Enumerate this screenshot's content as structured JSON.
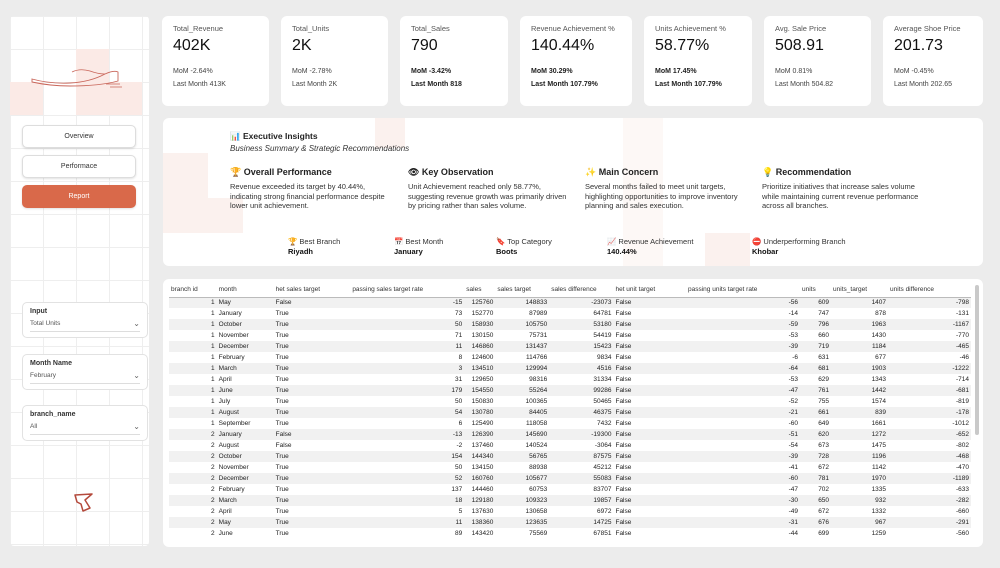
{
  "sidebar": {
    "nav": [
      {
        "label": "Overview",
        "active": false
      },
      {
        "label": "Performace",
        "active": false
      },
      {
        "label": "Report",
        "active": true
      }
    ],
    "filters": [
      {
        "title": "Input",
        "value": "Total Units"
      },
      {
        "title": "Month Name",
        "value": "February"
      },
      {
        "title": "branch_name",
        "value": "All"
      }
    ]
  },
  "kpis": [
    {
      "title": "Total_Revenue",
      "value": "402K",
      "mom": "MoM -2.64%",
      "last": "Last Month 413K",
      "bold": false
    },
    {
      "title": "Total_Units",
      "value": "2K",
      "mom": "MoM -2.78%",
      "last": "Last Month 2K",
      "bold": false
    },
    {
      "title": "Total_Sales",
      "value": "790",
      "mom": "MoM -3.42%",
      "last": "Last Month 818",
      "bold": true
    },
    {
      "title": "Revenue Achievement %",
      "value": "140.44%",
      "mom": "MoM 30.29%",
      "last": "Last Month 107.79%",
      "bold": true
    },
    {
      "title": "Units Achievement %",
      "value": "58.77%",
      "mom": "MoM 17.45%",
      "last": "Last Month 107.79%",
      "bold": true
    },
    {
      "title": "Avg. Sale Price",
      "value": "508.91",
      "mom": "MoM 0.81%",
      "last": "Last Month 504.82",
      "bold": false
    },
    {
      "title": "Average Shoe Price",
      "value": "201.73",
      "mom": "MoM -0.45%",
      "last": "Last Month 202.65",
      "bold": false
    }
  ],
  "insights": {
    "title": "📊 Executive Insights",
    "subtitle": "Business Summary & Strategic Recommendations",
    "columns": [
      {
        "head": "🏆 Overall Performance",
        "text": "Revenue exceeded its target by 40.44%, indicating strong financial performance despite lower unit achievement."
      },
      {
        "head": "👁 Key Observation",
        "text": "Unit Achievement reached only 58.77%, suggesting revenue growth was primarily driven by pricing rather than sales volume."
      },
      {
        "head": "✨ Main Concern",
        "text": "Several months failed to meet unit targets, highlighting opportunities to improve inventory planning and sales execution."
      },
      {
        "head": "💡 Recommendation",
        "text": "Prioritize initiatives that increase sales volume while maintaining current revenue performance across all branches."
      }
    ],
    "stats": [
      {
        "label": "🏆 Best Branch",
        "value": "Riyadh"
      },
      {
        "label": "📅 Best Month",
        "value": "January"
      },
      {
        "label": "🔖 Top Category",
        "value": "Boots"
      },
      {
        "label": "📈 Revenue Achievement",
        "value": "140.44%"
      },
      {
        "label": "⛔ Underperforming Branch",
        "value": "Khobar"
      }
    ]
  },
  "table": {
    "columns": [
      "branch id",
      "month",
      "het sales target",
      "passing sales target rate",
      "sales",
      "sales target",
      "sales difference",
      "het unit target",
      "passing units target rate",
      "units",
      "units_target",
      "units difference"
    ],
    "rows": [
      [
        "1",
        "May",
        "False",
        "-15",
        "125760",
        "148833",
        "-23073",
        "False",
        "-56",
        "609",
        "1407",
        "-798"
      ],
      [
        "1",
        "January",
        "True",
        "73",
        "152770",
        "87989",
        "64781",
        "False",
        "-14",
        "747",
        "878",
        "-131"
      ],
      [
        "1",
        "October",
        "True",
        "50",
        "158930",
        "105750",
        "53180",
        "False",
        "-59",
        "796",
        "1963",
        "-1167"
      ],
      [
        "1",
        "November",
        "True",
        "71",
        "130150",
        "75731",
        "54419",
        "False",
        "-53",
        "660",
        "1430",
        "-770"
      ],
      [
        "1",
        "December",
        "True",
        "11",
        "146860",
        "131437",
        "15423",
        "False",
        "-39",
        "719",
        "1184",
        "-465"
      ],
      [
        "1",
        "February",
        "True",
        "8",
        "124600",
        "114766",
        "9834",
        "False",
        "-6",
        "631",
        "677",
        "-46"
      ],
      [
        "1",
        "March",
        "True",
        "3",
        "134510",
        "129994",
        "4516",
        "False",
        "-64",
        "681",
        "1903",
        "-1222"
      ],
      [
        "1",
        "April",
        "True",
        "31",
        "129650",
        "98316",
        "31334",
        "False",
        "-53",
        "629",
        "1343",
        "-714"
      ],
      [
        "1",
        "June",
        "True",
        "179",
        "154550",
        "55264",
        "99286",
        "False",
        "-47",
        "761",
        "1442",
        "-681"
      ],
      [
        "1",
        "July",
        "True",
        "50",
        "150830",
        "100365",
        "50465",
        "False",
        "-52",
        "755",
        "1574",
        "-819"
      ],
      [
        "1",
        "August",
        "True",
        "54",
        "130780",
        "84405",
        "46375",
        "False",
        "-21",
        "661",
        "839",
        "-178"
      ],
      [
        "1",
        "September",
        "True",
        "6",
        "125490",
        "118058",
        "7432",
        "False",
        "-60",
        "649",
        "1661",
        "-1012"
      ],
      [
        "2",
        "January",
        "False",
        "-13",
        "126390",
        "145690",
        "-19300",
        "False",
        "-51",
        "620",
        "1272",
        "-652"
      ],
      [
        "2",
        "August",
        "False",
        "-2",
        "137460",
        "140524",
        "-3064",
        "False",
        "-54",
        "673",
        "1475",
        "-802"
      ],
      [
        "2",
        "October",
        "True",
        "154",
        "144340",
        "56765",
        "87575",
        "False",
        "-39",
        "728",
        "1196",
        "-468"
      ],
      [
        "2",
        "November",
        "True",
        "50",
        "134150",
        "88938",
        "45212",
        "False",
        "-41",
        "672",
        "1142",
        "-470"
      ],
      [
        "2",
        "December",
        "True",
        "52",
        "160760",
        "105677",
        "55083",
        "False",
        "-60",
        "781",
        "1970",
        "-1189"
      ],
      [
        "2",
        "February",
        "True",
        "137",
        "144460",
        "60753",
        "83707",
        "False",
        "-47",
        "702",
        "1335",
        "-633"
      ],
      [
        "2",
        "March",
        "True",
        "18",
        "129180",
        "109323",
        "19857",
        "False",
        "-30",
        "650",
        "932",
        "-282"
      ],
      [
        "2",
        "April",
        "True",
        "5",
        "137630",
        "130658",
        "6972",
        "False",
        "-49",
        "672",
        "1332",
        "-660"
      ],
      [
        "2",
        "May",
        "True",
        "11",
        "138360",
        "123635",
        "14725",
        "False",
        "-31",
        "676",
        "967",
        "-291"
      ],
      [
        "2",
        "June",
        "True",
        "89",
        "143420",
        "75569",
        "67851",
        "False",
        "-44",
        "699",
        "1259",
        "-560"
      ]
    ]
  }
}
